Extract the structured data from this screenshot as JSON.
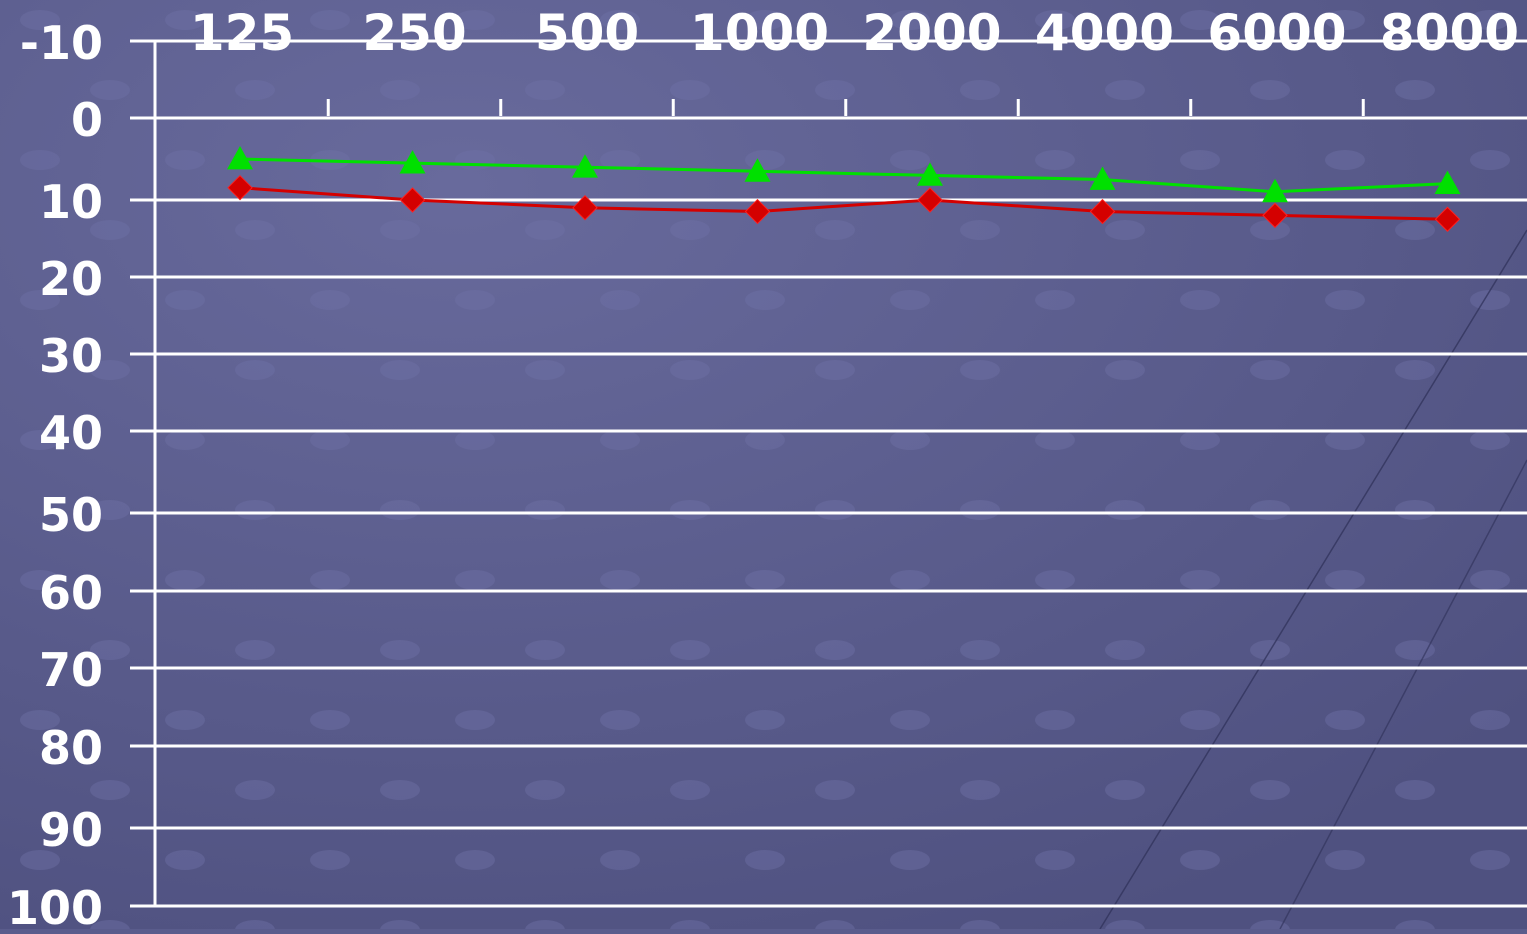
{
  "chart_data": {
    "type": "line",
    "title": "",
    "xlabel": "",
    "ylabel": "",
    "categories": [
      "125",
      "250",
      "500",
      "1000",
      "2000",
      "4000",
      "6000",
      "8000"
    ],
    "y_ticks": [
      "-10",
      "0",
      "10",
      "20",
      "30",
      "40",
      "50",
      "60",
      "70",
      "80",
      "90",
      "100"
    ],
    "ylim": [
      -10,
      100
    ],
    "y_inverted": true,
    "x_axis_position": "top",
    "grid": true,
    "series": [
      {
        "color": "#00e000",
        "marker": "triangle",
        "values": [
          5,
          5.5,
          6,
          6.5,
          7,
          7.5,
          9,
          8
        ]
      },
      {
        "color": "#d40000",
        "marker": "diamond",
        "values": [
          8.5,
          10,
          11,
          11.5,
          10,
          11.5,
          12,
          12.5
        ]
      }
    ]
  },
  "colors": {
    "background": "#5a5c8c",
    "gridline": "#ffffff",
    "text": "#ffffff"
  }
}
